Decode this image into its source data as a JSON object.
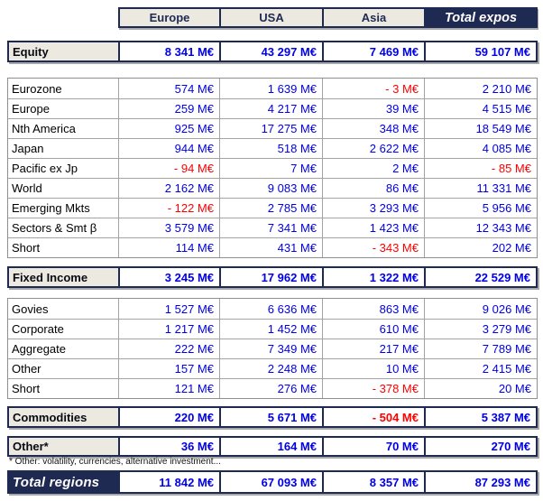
{
  "columns": [
    "Europe",
    "USA",
    "Asia",
    "Total expos"
  ],
  "colors": {
    "navy": "#1f2a52",
    "cream": "#ece9e0",
    "value_blue": "#0000e6",
    "negative_red": "#ff0000"
  },
  "sections": {
    "equity": {
      "label": "Equity",
      "values": [
        "8 341 M€",
        "43 297 M€",
        "7 469 M€",
        "59 107 M€"
      ]
    },
    "equity_detail": [
      {
        "label": "Eurozone",
        "values": [
          "574 M€",
          "1 639 M€",
          "- 3 M€",
          "2 210 M€"
        ]
      },
      {
        "label": "Europe",
        "values": [
          "259 M€",
          "4 217 M€",
          "39 M€",
          "4 515 M€"
        ]
      },
      {
        "label": "Nth America",
        "values": [
          "925 M€",
          "17 275 M€",
          "348 M€",
          "18 549 M€"
        ]
      },
      {
        "label": "Japan",
        "values": [
          "944 M€",
          "518 M€",
          "2 622 M€",
          "4 085 M€"
        ]
      },
      {
        "label": "Pacific ex Jp",
        "values": [
          "- 94 M€",
          "7 M€",
          "2 M€",
          "- 85 M€"
        ]
      },
      {
        "label": "World",
        "values": [
          "2 162 M€",
          "9 083 M€",
          "86 M€",
          "11 331 M€"
        ]
      },
      {
        "label": "Emerging Mkts",
        "values": [
          "- 122 M€",
          "2 785 M€",
          "3 293 M€",
          "5 956 M€"
        ]
      },
      {
        "label": "Sectors & Smt β",
        "values": [
          "3 579 M€",
          "7 341 M€",
          "1 423 M€",
          "12 343 M€"
        ]
      },
      {
        "label": "Short",
        "values": [
          "114 M€",
          "431 M€",
          "- 343 M€",
          "202 M€"
        ]
      }
    ],
    "fixed_income": {
      "label": "Fixed Income",
      "values": [
        "3 245 M€",
        "17 962 M€",
        "1 322 M€",
        "22 529 M€"
      ]
    },
    "fixed_income_detail": [
      {
        "label": "Govies",
        "values": [
          "1 527 M€",
          "6 636 M€",
          "863 M€",
          "9 026 M€"
        ]
      },
      {
        "label": "Corporate",
        "values": [
          "1 217 M€",
          "1 452 M€",
          "610 M€",
          "3 279 M€"
        ]
      },
      {
        "label": "Aggregate",
        "values": [
          "222 M€",
          "7 349 M€",
          "217 M€",
          "7 789 M€"
        ]
      },
      {
        "label": "Other",
        "values": [
          "157 M€",
          "2 248 M€",
          "10 M€",
          "2 415 M€"
        ]
      },
      {
        "label": "Short",
        "values": [
          "121 M€",
          "276 M€",
          "- 378 M€",
          "20 M€"
        ]
      }
    ],
    "commodities": {
      "label": "Commodities",
      "values": [
        "220 M€",
        "5 671 M€",
        "- 504 M€",
        "5 387 M€"
      ]
    },
    "other": {
      "label": "Other*",
      "values": [
        "36 M€",
        "164 M€",
        "70 M€",
        "270 M€"
      ]
    },
    "total": {
      "label": "Total regions",
      "values": [
        "11 842 M€",
        "67 093 M€",
        "8 357 M€",
        "87 293 M€"
      ]
    }
  },
  "footnote": "* Other: volatility, currencies, alternative investment..."
}
